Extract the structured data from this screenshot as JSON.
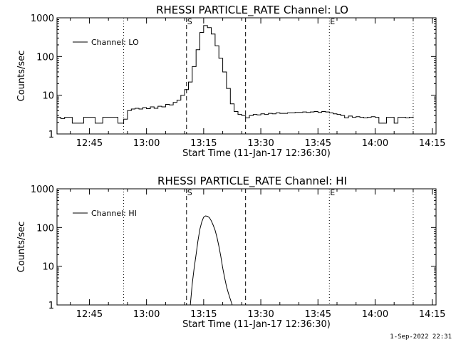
{
  "footer": {
    "timestamp": "1-Sep-2022 22:31"
  },
  "colors": {
    "background": "#ffffff",
    "ink": "#000000"
  },
  "chart_data": [
    {
      "type": "line",
      "title": "RHESSI PARTICLE_RATE Channel: LO",
      "xlabel": "Start Time (11-Jan-17 12:36:30)",
      "ylabel": "Counts/sec",
      "yscale": "log",
      "ylim": [
        1,
        1000
      ],
      "yticks": [
        "1",
        "10",
        "100",
        "1000"
      ],
      "xlim": [
        "12:36:30",
        "14:16:00"
      ],
      "xticks": [
        "12:45",
        "13:00",
        "13:15",
        "13:30",
        "13:45",
        "14:00",
        "14:15"
      ],
      "grid": false,
      "legend": {
        "position": "top-left",
        "entries": [
          "Channel: LO"
        ]
      },
      "markers": [
        {
          "label": "S",
          "time": "13:10:30",
          "style": "dashed"
        },
        {
          "label": "",
          "time": "13:26:00",
          "style": "dashed"
        },
        {
          "label": "",
          "time": "12:54:00",
          "style": "dotted"
        },
        {
          "label": "E",
          "time": "13:48:00",
          "style": "dotted"
        },
        {
          "label": "",
          "time": "14:10:00",
          "style": "dotted"
        }
      ],
      "series": [
        {
          "name": "Channel: LO",
          "step": true,
          "x": [
            "12:36:30",
            "12:37:30",
            "12:38:30",
            "12:39:30",
            "12:40:30",
            "12:41:30",
            "12:42:30",
            "12:43:30",
            "12:44:30",
            "12:45:30",
            "12:46:30",
            "12:47:30",
            "12:48:30",
            "12:49:30",
            "12:50:30",
            "12:51:30",
            "12:52:30",
            "12:53:30",
            "12:54:00",
            "12:55:00",
            "12:56:00",
            "12:57:00",
            "12:58:00",
            "12:59:00",
            "13:00:00",
            "13:01:00",
            "13:02:00",
            "13:03:00",
            "13:04:00",
            "13:05:00",
            "13:06:00",
            "13:07:00",
            "13:08:00",
            "13:09:00",
            "13:10:00",
            "13:11:00",
            "13:12:00",
            "13:13:00",
            "13:14:00",
            "13:15:00",
            "13:16:00",
            "13:17:00",
            "13:18:00",
            "13:19:00",
            "13:20:00",
            "13:21:00",
            "13:22:00",
            "13:23:00",
            "13:24:00",
            "13:25:00",
            "13:26:00",
            "13:27:00",
            "13:28:00",
            "13:29:00",
            "13:30:00",
            "13:31:00",
            "13:32:00",
            "13:33:00",
            "13:34:00",
            "13:35:00",
            "13:36:00",
            "13:37:00",
            "13:38:00",
            "13:39:00",
            "13:40:00",
            "13:41:00",
            "13:42:00",
            "13:43:00",
            "13:44:00",
            "13:45:00",
            "13:46:00",
            "13:47:00",
            "13:48:00",
            "13:49:00",
            "13:50:00",
            "13:51:00",
            "13:52:00",
            "13:53:00",
            "13:54:00",
            "13:55:00",
            "13:56:00",
            "13:57:00",
            "13:58:00",
            "13:59:00",
            "14:00:00",
            "14:01:00",
            "14:02:00",
            "14:03:00",
            "14:04:00",
            "14:05:00",
            "14:06:00",
            "14:07:00",
            "14:08:00",
            "14:09:00",
            "14:10:00"
          ],
          "y": [
            2.7,
            2.5,
            2.7,
            2.7,
            1.9,
            1.9,
            1.9,
            2.7,
            2.7,
            2.7,
            1.9,
            1.9,
            2.7,
            2.7,
            2.7,
            2.7,
            1.9,
            1.9,
            2.4,
            4.0,
            4.4,
            4.6,
            4.4,
            4.8,
            4.5,
            5.0,
            4.6,
            5.2,
            5.0,
            5.8,
            5.6,
            6.5,
            7.5,
            10,
            14,
            22,
            55,
            150,
            420,
            630,
            560,
            380,
            190,
            90,
            40,
            15,
            6,
            3.8,
            3.2,
            3.0,
            2.6,
            3.0,
            3.2,
            3.1,
            3.3,
            3.2,
            3.4,
            3.3,
            3.5,
            3.4,
            3.4,
            3.5,
            3.5,
            3.6,
            3.6,
            3.7,
            3.6,
            3.7,
            3.8,
            3.6,
            3.8,
            3.7,
            3.5,
            3.3,
            3.2,
            3.0,
            2.6,
            2.9,
            2.7,
            2.8,
            2.7,
            2.6,
            2.7,
            2.8,
            2.7,
            1.9,
            1.9,
            2.7,
            2.7,
            1.9,
            2.7,
            2.7,
            2.6,
            2.7,
            2.8
          ]
        }
      ]
    },
    {
      "type": "line",
      "title": "RHESSI PARTICLE_RATE Channel: HI",
      "xlabel": "Start Time (11-Jan-17 12:36:30)",
      "ylabel": "Counts/sec",
      "yscale": "log",
      "ylim": [
        1,
        1000
      ],
      "yticks": [
        "1",
        "10",
        "100",
        "1000"
      ],
      "xlim": [
        "12:36:30",
        "14:16:00"
      ],
      "xticks": [
        "12:45",
        "13:00",
        "13:15",
        "13:30",
        "13:45",
        "14:00",
        "14:15"
      ],
      "grid": false,
      "legend": {
        "position": "top-left",
        "entries": [
          "Channel: HI"
        ]
      },
      "markers": [
        {
          "label": "S",
          "time": "13:10:30",
          "style": "dashed"
        },
        {
          "label": "",
          "time": "13:26:00",
          "style": "dashed"
        },
        {
          "label": "",
          "time": "12:54:00",
          "style": "dotted"
        },
        {
          "label": "E",
          "time": "13:48:00",
          "style": "dotted"
        },
        {
          "label": "",
          "time": "14:10:00",
          "style": "dotted"
        }
      ],
      "series": [
        {
          "name": "Channel: HI",
          "step": false,
          "x": [
            "13:11:30",
            "13:12:00",
            "13:12:30",
            "13:13:00",
            "13:13:30",
            "13:14:00",
            "13:14:30",
            "13:15:00",
            "13:15:30",
            "13:16:00",
            "13:16:30",
            "13:17:00",
            "13:17:30",
            "13:18:00",
            "13:18:30",
            "13:19:00",
            "13:19:30",
            "13:20:00",
            "13:20:30",
            "13:21:00",
            "13:21:30",
            "13:22:00",
            "13:22:30"
          ],
          "y": [
            1.0,
            3.5,
            9,
            20,
            45,
            90,
            140,
            185,
            200,
            195,
            180,
            150,
            115,
            85,
            55,
            33,
            18,
            9,
            5,
            3,
            2,
            1.4,
            1.0
          ]
        }
      ]
    }
  ]
}
